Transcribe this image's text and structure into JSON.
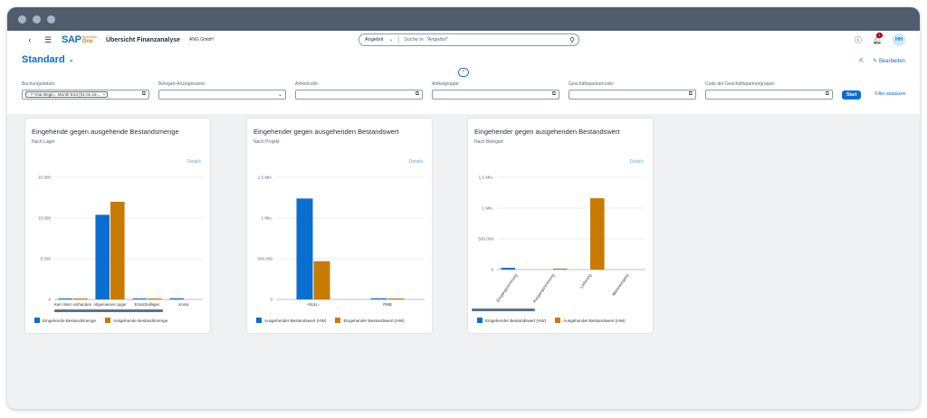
{
  "shell": {
    "logo_sap": "SAP",
    "logo_business": "Business",
    "logo_one": "One",
    "app_title": "Übersicht Finanzanalyse",
    "company": "ANG GmbH",
    "search_scope": "Angebot",
    "search_placeholder": "Suche in: \"Angebot\"",
    "notifications_count": "1",
    "user_initials": "HH"
  },
  "header": {
    "variant": "Standard",
    "edit_label": "Bearbeiten"
  },
  "filterbar": {
    "filters": [
      {
        "label": "Buchungsdatum:",
        "token": "- 7 Year Begin...Month End (01.01.18...",
        "type": "token"
      },
      {
        "label": "Belegart-Anzeigename:",
        "type": "select"
      },
      {
        "label": "Artikelcode:",
        "type": "vh"
      },
      {
        "label": "Artikelgruppe:",
        "type": "vh"
      },
      {
        "label": "Geschäftspartnercode:",
        "type": "vh"
      },
      {
        "label": "Code der Geschäftspartnergruppe:",
        "type": "vh"
      }
    ],
    "go_label": "Start",
    "adapt_label": "Filter anpassen"
  },
  "colors": {
    "incoming": "#0a6ed1",
    "outgoing": "#c87b00",
    "brand": "#0a6ed1"
  },
  "cards": [
    {
      "title": "Eingehende gegen ausgehende Bestandsmenge",
      "subtitle": "Nach Lager",
      "details": "Details",
      "legend": [
        "Eingehende Bestandsmenge",
        "Ausgehende Bestandsmenge"
      ]
    },
    {
      "title": "Eingehender gegen ausgehenden Bestandswert",
      "subtitle": "Nach Projekt",
      "details": "Details",
      "legend": [
        "Ausgehender Bestandswert (HW)",
        "Eingehender Bestandswert (HW)"
      ]
    },
    {
      "title": "Eingehender gegen ausgehenden Bestandswert",
      "subtitle": "Nach Belegart",
      "details": "Details",
      "legend": [
        "Eingehender Bestandswert (HW)",
        "Ausgehender Bestandswert (HW)"
      ]
    }
  ],
  "chart_data": [
    {
      "type": "bar",
      "categories": [
        "Kein Wert vorhanden",
        "Allgemeines Lager",
        "Ersatzteillager",
        "Konsi."
      ],
      "series": [
        {
          "name": "Eingehende Bestandsmenge",
          "values": [
            100,
            10400,
            100,
            150
          ]
        },
        {
          "name": "Ausgehende Bestandsmenge",
          "values": [
            80,
            12000,
            60,
            0
          ]
        }
      ],
      "y_ticks": [
        "0",
        "5.000",
        "10.000",
        "15.000"
      ],
      "ylim": [
        0,
        15000
      ],
      "label_rotation": 0
    },
    {
      "type": "bar",
      "categories": [
        "-NULL-",
        "PMB"
      ],
      "series": [
        {
          "name": "Ausgehender Bestandswert (HW)",
          "values": [
            1240000,
            15000
          ]
        },
        {
          "name": "Eingehender Bestandswert (HW)",
          "values": [
            470000,
            10000
          ]
        }
      ],
      "y_ticks": [
        "0",
        "500.000",
        "1 Mio.",
        "1,5 Mio."
      ],
      "ylim": [
        0,
        1500000
      ],
      "label_rotation": 0
    },
    {
      "type": "bar",
      "categories": [
        "Eingangsrechnung",
        "Ausgangsrechnung",
        "Lieferung",
        "Wareneingang"
      ],
      "series": [
        {
          "name": "Eingehender Bestandswert (HW)",
          "values": [
            30000,
            0,
            0,
            0
          ]
        },
        {
          "name": "Ausgehender Bestandswert (HW)",
          "values": [
            0,
            15000,
            1160000,
            0
          ]
        }
      ],
      "y_ticks": [
        "0",
        "500.000",
        "1 Mio.",
        "1,5 Mio."
      ],
      "ylim": [
        0,
        1500000
      ],
      "label_rotation": -55
    }
  ]
}
